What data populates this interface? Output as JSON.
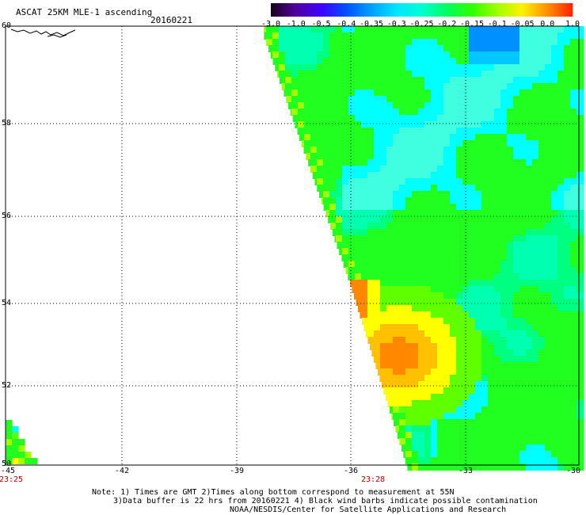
{
  "title": "ASCAT 25KM MLE-1 ascending",
  "date": "20160221",
  "colorbar": {
    "labels": [
      "-3.0",
      "-1.0",
      "-0.5",
      "-0.4",
      "-0.35",
      "-0.3",
      "-0.25",
      "-0.2",
      "-0.15",
      "-0.1",
      "-0.05",
      "0.0",
      "1.0"
    ],
    "colors": [
      "#1a001a",
      "#5000a0",
      "#4000ff",
      "#0050ff",
      "#00a0ff",
      "#00e6ff",
      "#00ffd0",
      "#00ff60",
      "#30ff00",
      "#a0ff00",
      "#fff000",
      "#ff9000",
      "#ff2000"
    ]
  },
  "map": {
    "lat_labels": [
      "60",
      "58",
      "56",
      "54",
      "52",
      "50"
    ],
    "lon_labels": [
      "-45",
      "-42",
      "-39",
      "-36",
      "-33",
      "-30"
    ],
    "time_labels": [
      "23:25",
      "23:28"
    ]
  },
  "notes": {
    "line1": "Note: 1) Times are GMT 2)Times along bottom correspond to measurement at 55N",
    "line2": "3)Data buffer is 22 hrs from 20160221 4) Black wind barbs indicate possible contamination",
    "line3": "NOAA/NESDIS/Center for Satellite Applications and Research"
  }
}
